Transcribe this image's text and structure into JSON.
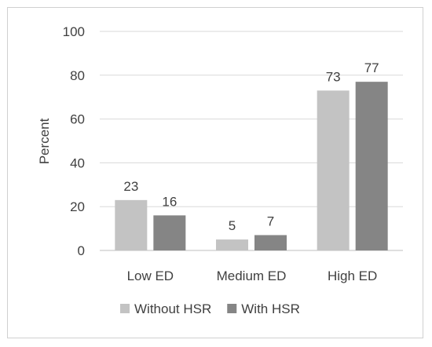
{
  "chart_data": {
    "type": "bar",
    "categories": [
      "Low ED",
      "Medium ED",
      "High ED"
    ],
    "series": [
      {
        "name": "Without HSR",
        "values": [
          23,
          5,
          73
        ],
        "labels": [
          "23",
          "5",
          "73"
        ],
        "color": "#c3c3c3"
      },
      {
        "name": "With HSR",
        "values": [
          16,
          7,
          77
        ],
        "labels": [
          "16",
          "7",
          "77"
        ],
        "color": "#858585"
      }
    ],
    "title": "",
    "xlabel": "",
    "ylabel": "Percent",
    "ylim": [
      0,
      100
    ],
    "yticks": [
      0,
      20,
      40,
      60,
      80,
      100
    ],
    "ytick_labels": [
      "0",
      "20",
      "40",
      "60",
      "80",
      "100"
    ],
    "grid": true,
    "legend": "bottom"
  }
}
